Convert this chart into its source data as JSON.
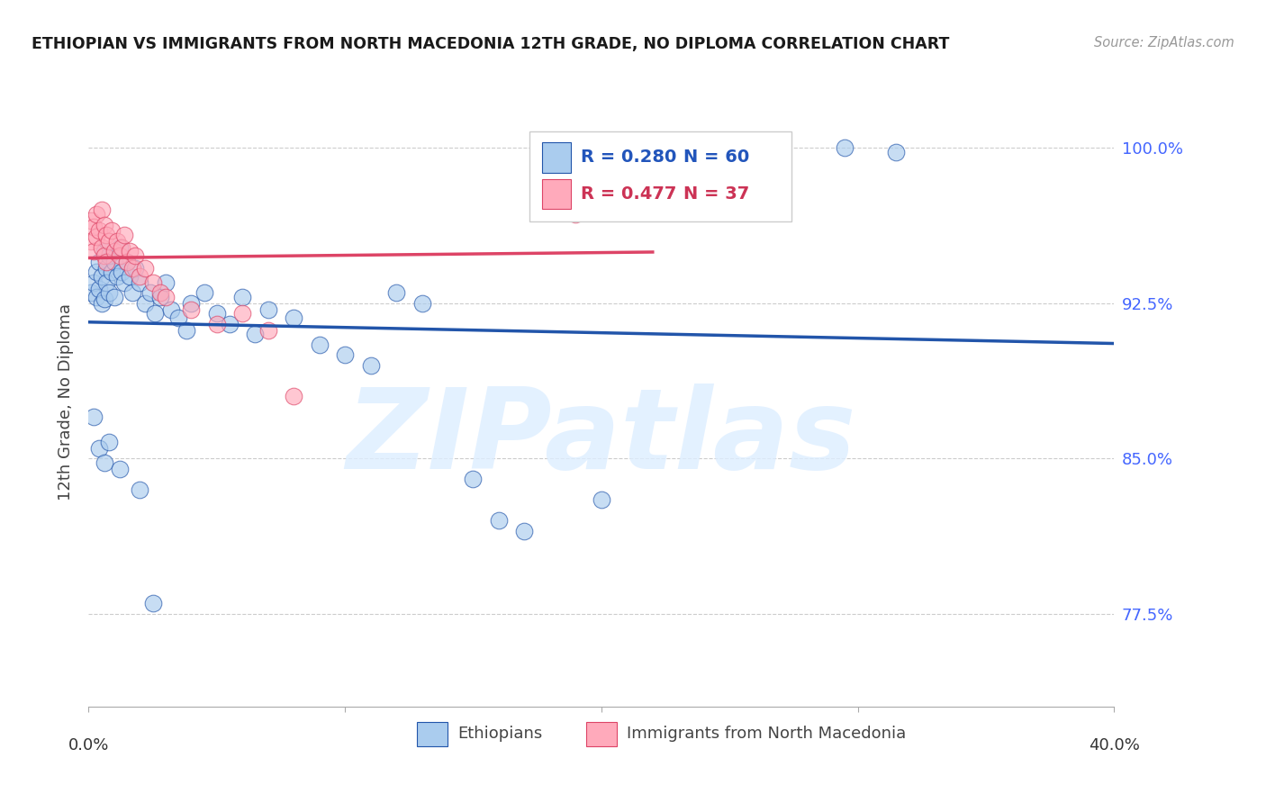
{
  "title": "ETHIOPIAN VS IMMIGRANTS FROM NORTH MACEDONIA 12TH GRADE, NO DIPLOMA CORRELATION CHART",
  "source": "Source: ZipAtlas.com",
  "ylabel": "12th Grade, No Diploma",
  "watermark": "ZIPatlas",
  "blue_scatter_color": "#AACCEE",
  "pink_scatter_color": "#FFAABB",
  "blue_line_color": "#2255AA",
  "pink_line_color": "#DD4466",
  "blue_text_color": "#2255BB",
  "pink_text_color": "#CC3355",
  "right_tick_color": "#4466FF",
  "xlim": [
    0.0,
    0.4
  ],
  "ylim": [
    0.73,
    1.025
  ],
  "yticks": [
    0.775,
    0.85,
    0.925,
    1.0
  ],
  "ytick_labels": [
    "77.5%",
    "85.0%",
    "92.5%",
    "100.0%"
  ],
  "legend_label_blue": "Ethiopians",
  "legend_label_pink": "Immigrants from North Macedonia",
  "ethiopians_x": [
    0.001,
    0.002,
    0.003,
    0.003,
    0.004,
    0.004,
    0.005,
    0.005,
    0.006,
    0.006,
    0.007,
    0.007,
    0.008,
    0.008,
    0.009,
    0.01,
    0.01,
    0.011,
    0.012,
    0.013,
    0.014,
    0.015,
    0.016,
    0.017,
    0.018,
    0.02,
    0.022,
    0.024,
    0.026,
    0.028,
    0.03,
    0.032,
    0.035,
    0.038,
    0.04,
    0.045,
    0.05,
    0.055,
    0.06,
    0.065,
    0.07,
    0.08,
    0.09,
    0.1,
    0.11,
    0.12,
    0.13,
    0.15,
    0.16,
    0.17,
    0.002,
    0.004,
    0.006,
    0.008,
    0.012,
    0.02,
    0.025,
    0.2,
    0.295,
    0.315
  ],
  "ethiopians_y": [
    0.93,
    0.935,
    0.94,
    0.928,
    0.945,
    0.932,
    0.938,
    0.925,
    0.95,
    0.927,
    0.942,
    0.935,
    0.948,
    0.93,
    0.94,
    0.945,
    0.928,
    0.938,
    0.952,
    0.94,
    0.935,
    0.945,
    0.938,
    0.93,
    0.942,
    0.935,
    0.925,
    0.93,
    0.92,
    0.928,
    0.935,
    0.922,
    0.918,
    0.912,
    0.925,
    0.93,
    0.92,
    0.915,
    0.928,
    0.91,
    0.922,
    0.918,
    0.905,
    0.9,
    0.895,
    0.93,
    0.925,
    0.84,
    0.82,
    0.815,
    0.87,
    0.855,
    0.848,
    0.858,
    0.845,
    0.835,
    0.78,
    0.83,
    1.0,
    0.998
  ],
  "macedonia_x": [
    0.001,
    0.001,
    0.002,
    0.002,
    0.003,
    0.003,
    0.004,
    0.005,
    0.005,
    0.006,
    0.006,
    0.007,
    0.007,
    0.008,
    0.009,
    0.01,
    0.011,
    0.012,
    0.013,
    0.014,
    0.015,
    0.016,
    0.017,
    0.018,
    0.02,
    0.022,
    0.025,
    0.028,
    0.03,
    0.04,
    0.05,
    0.06,
    0.07,
    0.08,
    0.19,
    0.2,
    0.21
  ],
  "macedonia_y": [
    0.965,
    0.955,
    0.962,
    0.95,
    0.968,
    0.957,
    0.96,
    0.97,
    0.952,
    0.963,
    0.948,
    0.958,
    0.945,
    0.955,
    0.96,
    0.95,
    0.955,
    0.948,
    0.952,
    0.958,
    0.945,
    0.95,
    0.942,
    0.948,
    0.938,
    0.942,
    0.935,
    0.93,
    0.928,
    0.922,
    0.915,
    0.92,
    0.912,
    0.88,
    0.968,
    0.975,
    0.97
  ]
}
